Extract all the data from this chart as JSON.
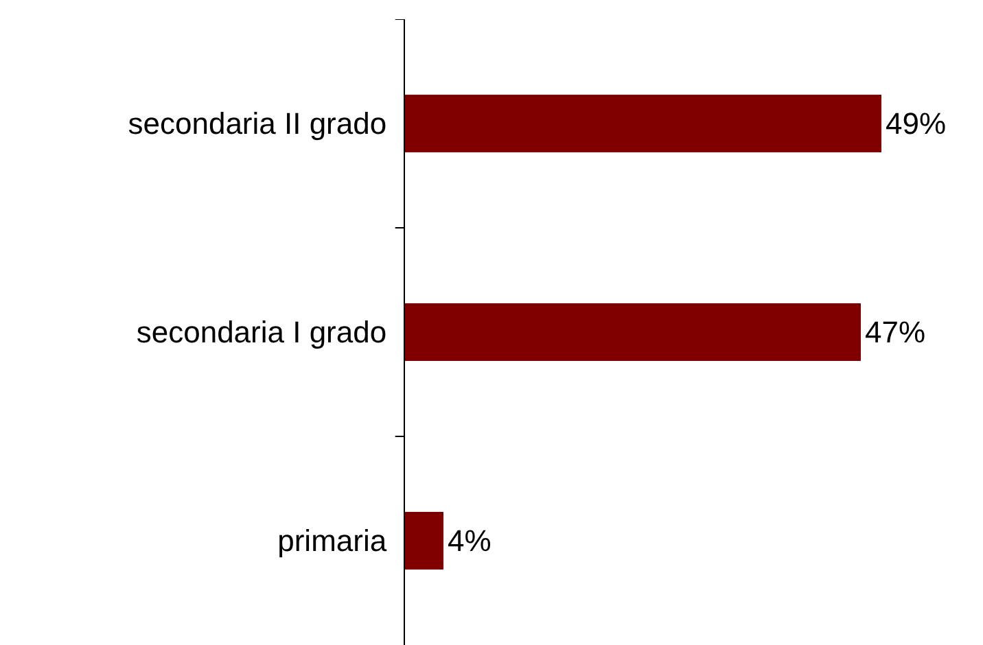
{
  "chart_data": {
    "type": "bar",
    "orientation": "horizontal",
    "categories": [
      "secondaria II grado",
      "secondaria I grado",
      "primaria"
    ],
    "values": [
      49,
      47,
      4
    ],
    "value_labels": [
      "49%",
      "47%",
      "4%"
    ],
    "color": "#800000",
    "grid": false,
    "legend": false,
    "tick_labels": "y"
  }
}
